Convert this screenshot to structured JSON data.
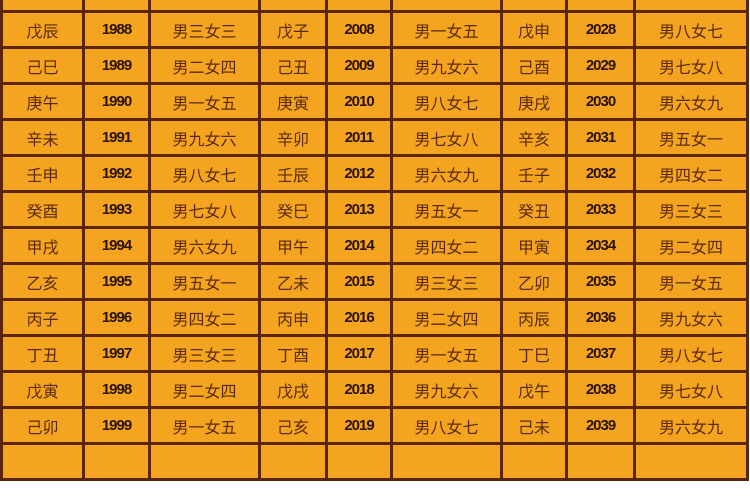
{
  "colors": {
    "cell": "#f5a420",
    "border": "#5a2508",
    "text": "#5a2a0c"
  },
  "rows": [
    [
      "",
      "",
      "",
      "",
      "",
      "",
      "",
      "",
      ""
    ],
    [
      "戊辰",
      "1988",
      "男三女三",
      "戊子",
      "2008",
      "男一女五",
      "戊申",
      "2028",
      "男八女七"
    ],
    [
      "己巳",
      "1989",
      "男二女四",
      "己丑",
      "2009",
      "男九女六",
      "己酉",
      "2029",
      "男七女八"
    ],
    [
      "庚午",
      "1990",
      "男一女五",
      "庚寅",
      "2010",
      "男八女七",
      "庚戌",
      "2030",
      "男六女九"
    ],
    [
      "辛未",
      "1991",
      "男九女六",
      "辛卯",
      "2011",
      "男七女八",
      "辛亥",
      "2031",
      "男五女一"
    ],
    [
      "壬申",
      "1992",
      "男八女七",
      "壬辰",
      "2012",
      "男六女九",
      "壬子",
      "2032",
      "男四女二"
    ],
    [
      "癸酉",
      "1993",
      "男七女八",
      "癸巳",
      "2013",
      "男五女一",
      "癸丑",
      "2033",
      "男三女三"
    ],
    [
      "甲戌",
      "1994",
      "男六女九",
      "甲午",
      "2014",
      "男四女二",
      "甲寅",
      "2034",
      "男二女四"
    ],
    [
      "乙亥",
      "1995",
      "男五女一",
      "乙未",
      "2015",
      "男三女三",
      "乙卯",
      "2035",
      "男一女五"
    ],
    [
      "丙子",
      "1996",
      "男四女二",
      "丙申",
      "2016",
      "男二女四",
      "丙辰",
      "2036",
      "男九女六"
    ],
    [
      "丁丑",
      "1997",
      "男三女三",
      "丁酉",
      "2017",
      "男一女五",
      "丁巳",
      "2037",
      "男八女七"
    ],
    [
      "戊寅",
      "1998",
      "男二女四",
      "戊戌",
      "2018",
      "男九女六",
      "戊午",
      "2038",
      "男七女八"
    ],
    [
      "己卯",
      "1999",
      "男一女五",
      "己亥",
      "2019",
      "男八女七",
      "己未",
      "2039",
      "男六女九"
    ],
    [
      "",
      "",
      "",
      "",
      "",
      "",
      "",
      "",
      ""
    ]
  ]
}
